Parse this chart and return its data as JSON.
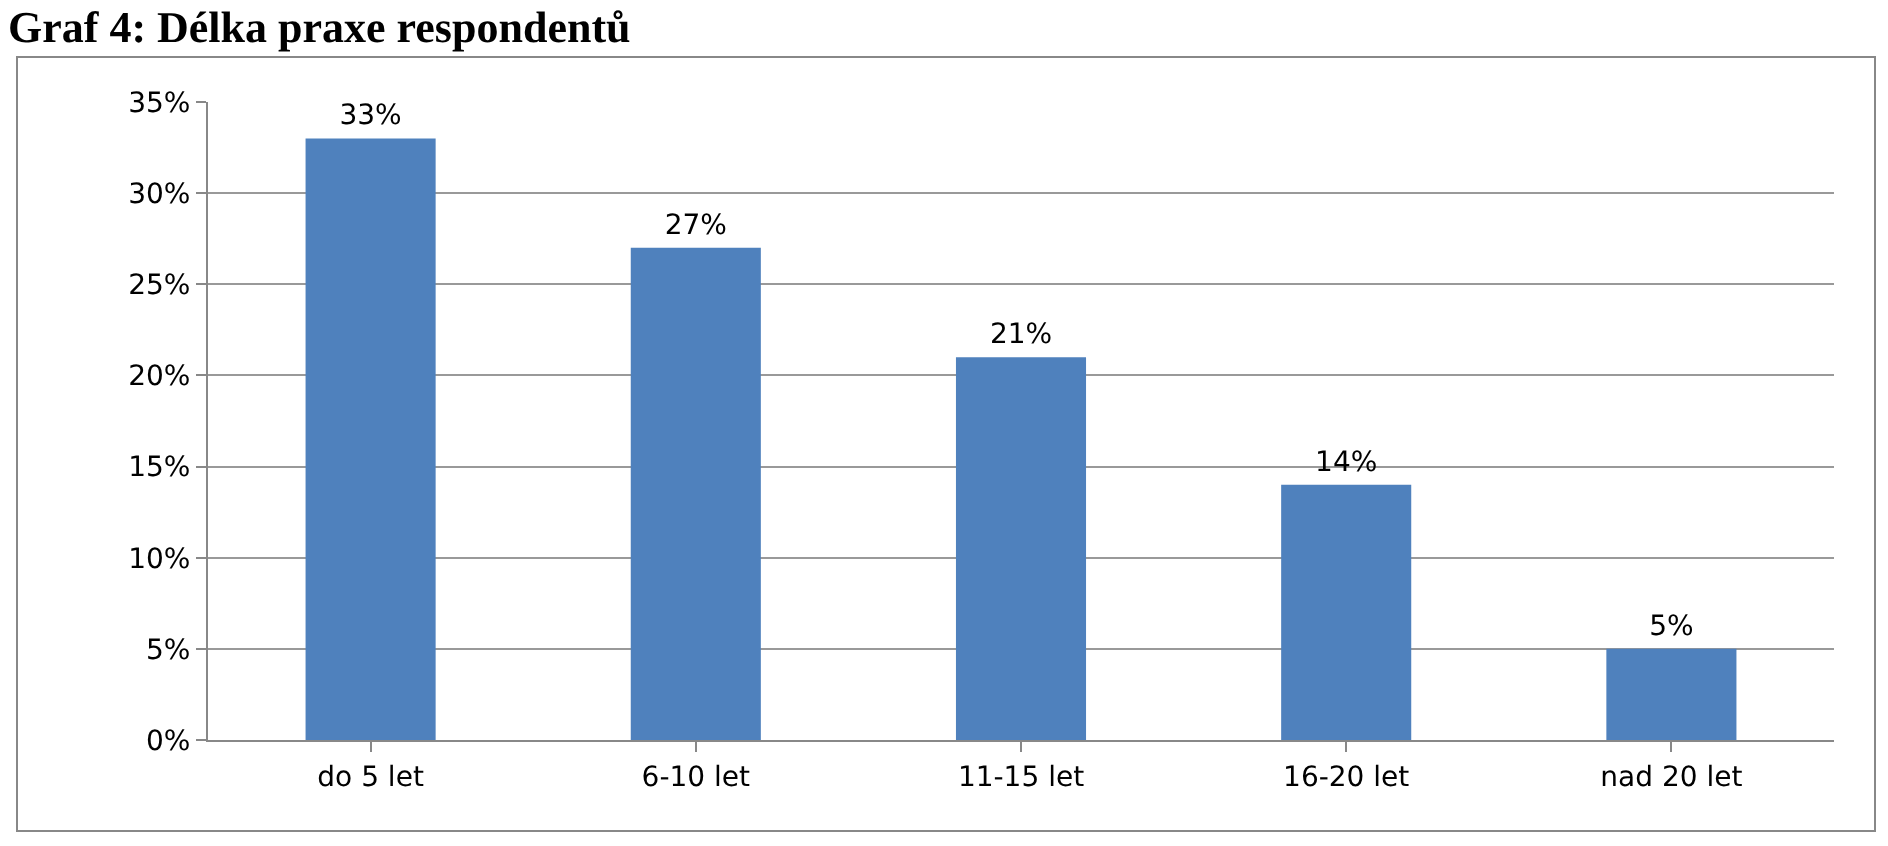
{
  "chart_data": {
    "type": "bar",
    "title": "Graf 4: Délka praxe respondentů",
    "categories": [
      "do 5 let",
      "6-10 let",
      "11-15 let",
      "16-20 let",
      "nad 20 let"
    ],
    "values": [
      33,
      27,
      21,
      14,
      5
    ],
    "color": "#4f81bd",
    "value_labels": [
      "33%",
      "27%",
      "21%",
      "14%",
      "5%"
    ],
    "ylim": [
      0,
      35
    ],
    "yticks": [
      {
        "value": 0,
        "label": "0%"
      },
      {
        "value": 5,
        "label": "5%"
      },
      {
        "value": 10,
        "label": "10%"
      },
      {
        "value": 15,
        "label": "15%"
      },
      {
        "value": 20,
        "label": "20%"
      },
      {
        "value": 25,
        "label": "25%"
      },
      {
        "value": 30,
        "label": "30%"
      },
      {
        "value": 35,
        "label": "35%"
      }
    ],
    "grid": "y",
    "legend": false
  }
}
